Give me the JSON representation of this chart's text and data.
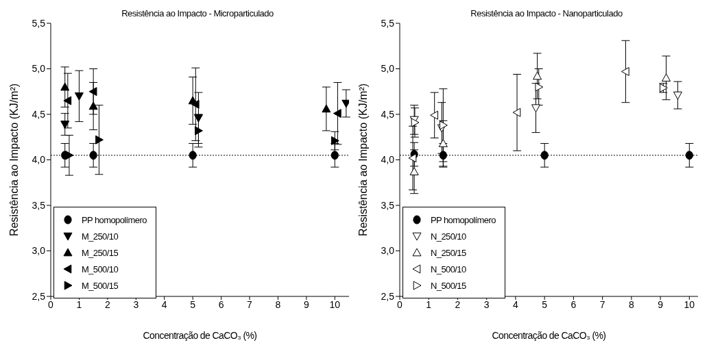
{
  "chart_data": [
    {
      "type": "scatter",
      "title": "Resistência ao Impacto - Microparticulado",
      "xlabel": "Concentração de CaCO₃ (%)",
      "ylabel": "Resistência ao Impacto  (KJ/m²)",
      "xlim": [
        0,
        10.5
      ],
      "ylim": [
        2.5,
        5.5
      ],
      "xticks": [
        0,
        1,
        2,
        3,
        4,
        5,
        6,
        7,
        8,
        9,
        10
      ],
      "yticks": [
        {
          "value": 2.5,
          "label": "2,5"
        },
        {
          "value": 3.0,
          "label": "3,0"
        },
        {
          "value": 3.5,
          "label": "3,5"
        },
        {
          "value": 4.0,
          "label": "4,0"
        },
        {
          "value": 4.5,
          "label": "4,5"
        },
        {
          "value": 5.0,
          "label": "5,0"
        },
        {
          "value": 5.5,
          "label": "5,5"
        }
      ],
      "grid": false,
      "legend": "bottom left",
      "ref_lines": [
        {
          "axis": "y",
          "value": 4.05,
          "label": null,
          "color": "#000000",
          "line_style": "dotted"
        }
      ],
      "series": [
        {
          "name": "PP homopolímero",
          "color": "#000000",
          "marker": "circle",
          "x": [
            0.5,
            1.5,
            5.0,
            10.0
          ],
          "values": [
            4.05,
            4.05,
            4.05,
            4.05
          ],
          "errors": [
            0.13,
            0.13,
            0.13,
            0.13
          ]
        },
        {
          "name": "M_250/10",
          "color": "#000000",
          "marker": "triangle-down",
          "x": [
            0.5,
            1.0,
            5.2,
            10.4
          ],
          "values": [
            4.39,
            4.7,
            4.46,
            4.62
          ],
          "errors": [
            0.12,
            0.28,
            0.28,
            0.15
          ]
        },
        {
          "name": "M_250/15",
          "color": "#000000",
          "marker": "triangle",
          "x": [
            0.5,
            1.5,
            5.0,
            9.7
          ],
          "values": [
            4.8,
            4.59,
            4.65,
            4.56
          ],
          "errors": [
            0.22,
            0.26,
            0.26,
            0.24
          ]
        },
        {
          "name": "M_500/10",
          "color": "#000000",
          "marker": "triangle-left",
          "x": [
            0.6,
            1.5,
            5.1,
            10.1
          ],
          "values": [
            4.65,
            4.75,
            4.61,
            4.51
          ],
          "errors": [
            0.3,
            0.25,
            0.4,
            0.34
          ]
        },
        {
          "name": "M_500/15",
          "color": "#000000",
          "marker": "triangle-right",
          "x": [
            0.65,
            1.7,
            5.2,
            10.0
          ],
          "values": [
            4.05,
            4.22,
            4.32,
            4.21
          ],
          "errors": [
            0.22,
            0.38,
            0.18,
            0.1
          ]
        }
      ]
    },
    {
      "type": "scatter",
      "title": "Resistência ao Impacto - Nanoparticulado",
      "xlabel": "Concentração de CaCO₃ (%)",
      "ylabel": "Resistência ao Impacto  (KJ/m²)",
      "xlim": [
        0,
        10.3
      ],
      "ylim": [
        2.5,
        5.5
      ],
      "xticks": [
        0,
        1,
        2,
        3,
        4,
        5,
        6,
        7,
        8,
        9,
        10
      ],
      "yticks": [
        {
          "value": 2.5,
          "label": "2,5"
        },
        {
          "value": 3.0,
          "label": "3,0"
        },
        {
          "value": 3.5,
          "label": "3,5"
        },
        {
          "value": 4.0,
          "label": "4,0"
        },
        {
          "value": 4.5,
          "label": "4,5"
        },
        {
          "value": 5.0,
          "label": "5,0"
        },
        {
          "value": 5.5,
          "label": "5,5"
        }
      ],
      "grid": false,
      "legend": "bottom left",
      "ref_lines": [
        {
          "axis": "y",
          "value": 4.05,
          "label": null,
          "color": "#000000",
          "line_style": "dotted"
        }
      ],
      "series": [
        {
          "name": "PP homopolímero",
          "color": "#000000",
          "marker": "circle",
          "x": [
            0.5,
            1.5,
            5.0,
            10.0
          ],
          "values": [
            4.06,
            4.05,
            4.05,
            4.05
          ],
          "errors": [
            0.13,
            0.13,
            0.13,
            0.13
          ]
        },
        {
          "name": "N_250/10",
          "color": "#000000",
          "marker": "triangle-down-open",
          "x": [
            0.5,
            1.45,
            4.7,
            9.6
          ],
          "values": [
            4.44,
            4.35,
            4.57,
            4.71
          ],
          "errors": [
            0.16,
            0.28,
            0.27,
            0.15
          ]
        },
        {
          "name": "N_250/15",
          "color": "#000000",
          "marker": "triangle-open",
          "x": [
            0.5,
            1.5,
            4.75,
            9.2
          ],
          "values": [
            3.87,
            4.18,
            4.92,
            4.9
          ],
          "errors": [
            0.24,
            0.25,
            0.25,
            0.24
          ]
        },
        {
          "name": "N_500/10",
          "color": "#000000",
          "marker": "triangle-left-open",
          "x": [
            0.45,
            1.2,
            4.05,
            7.8
          ],
          "values": [
            4.02,
            4.49,
            4.52,
            4.97
          ],
          "errors": [
            0.35,
            0.25,
            0.42,
            0.34
          ]
        },
        {
          "name": "N_500/15",
          "color": "#000000",
          "marker": "triangle-right-open",
          "x": [
            0.52,
            1.5,
            4.8,
            9.1
          ],
          "values": [
            4.41,
            4.38,
            4.8,
            4.79
          ],
          "errors": [
            0.16,
            0.4,
            0.2,
            0.05
          ]
        }
      ]
    }
  ]
}
